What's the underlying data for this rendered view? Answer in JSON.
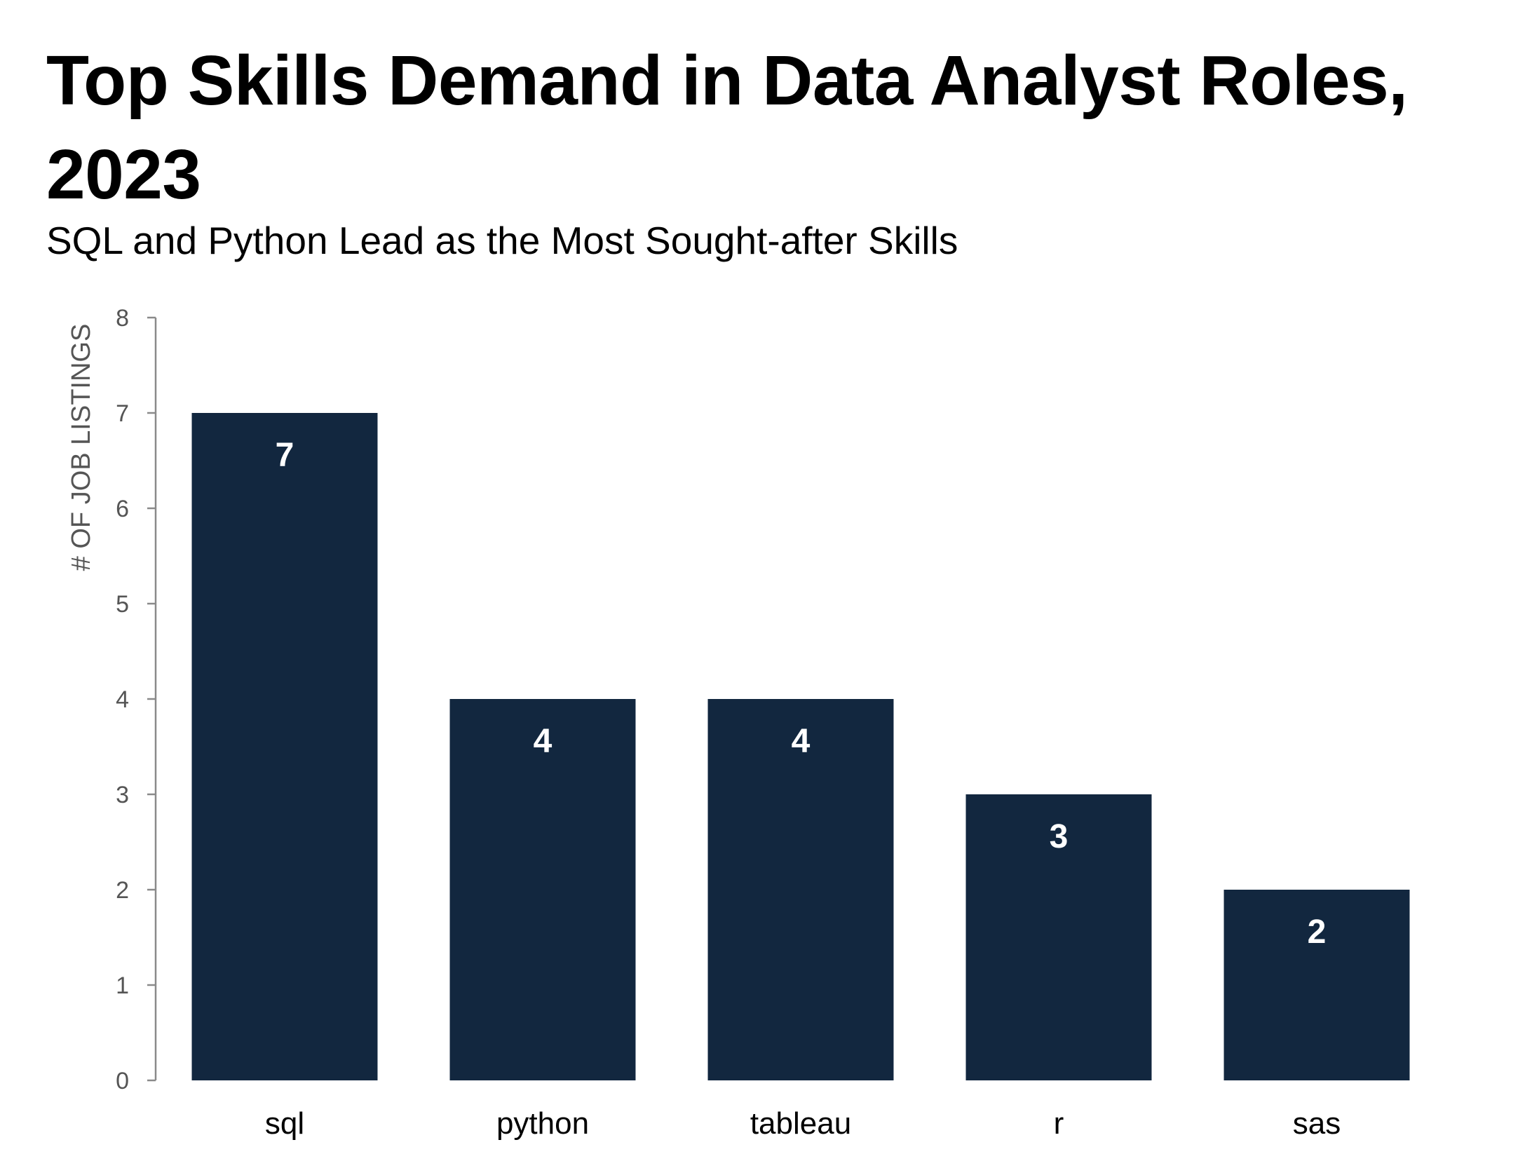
{
  "chart_data": {
    "type": "bar",
    "title": "Top Skills Demand in Data Analyst Roles, 2023",
    "subtitle": "SQL and Python Lead as the Most Sought-after Skills",
    "xlabel": "",
    "ylabel": "# OF JOB LISTINGS",
    "categories": [
      "sql",
      "python",
      "tableau",
      "r",
      "sas"
    ],
    "values": [
      7,
      4,
      4,
      3,
      2
    ],
    "ylim": [
      0,
      8
    ],
    "yticks": [
      0,
      1,
      2,
      3,
      4,
      5,
      6,
      7,
      8
    ],
    "grid": false,
    "legend": "none",
    "data_labels": true,
    "bar_color": "#12273f",
    "axis_color": "#8a8a8a"
  }
}
